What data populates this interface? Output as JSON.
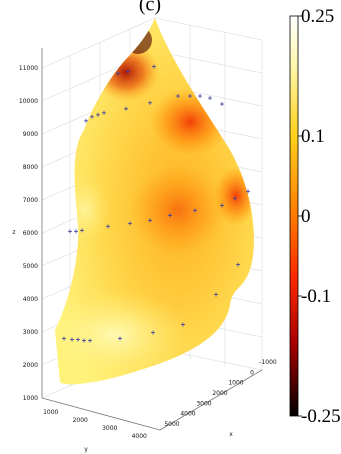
{
  "panel_title": "(c)",
  "chart_data": {
    "type": "heatmap",
    "subtype": "3d-surface",
    "title": "(c)",
    "xlabel": "x",
    "ylabel": "y",
    "zlabel": "z",
    "x_ticks": [
      "-1000",
      "0",
      "1000",
      "2000",
      "3000",
      "4000",
      "5000"
    ],
    "y_ticks": [
      "1000",
      "2000",
      "3000",
      "4000"
    ],
    "z_ticks": [
      "1000",
      "2000",
      "3000",
      "4000",
      "5000",
      "6000",
      "7000",
      "8000",
      "9000",
      "10000",
      "11000"
    ],
    "zlim": [
      1000,
      11000
    ],
    "colorbar": {
      "range": [
        -0.25,
        0.25
      ],
      "tick_values": [
        0.25,
        0.1,
        0,
        -0.1,
        -0.25
      ],
      "tick_labels": [
        "0.25",
        "0.1",
        "0",
        "-0.1",
        "-0.25"
      ],
      "colormap": "hot"
    },
    "marker_rows_z": [
      2800,
      6050,
      9400,
      10150
    ],
    "grid": true
  }
}
